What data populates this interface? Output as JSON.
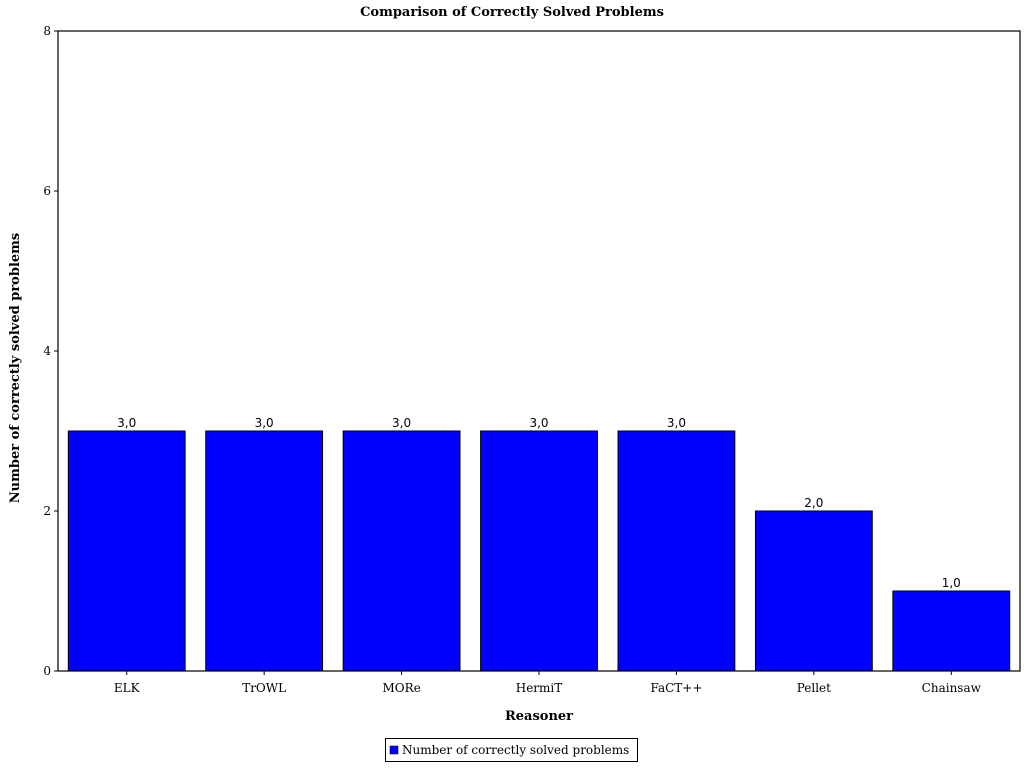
{
  "chart_data": {
    "type": "bar",
    "title": "Comparison of Correctly Solved Problems",
    "xlabel": "Reasoner",
    "ylabel": "Number of correctly solved problems",
    "categories": [
      "ELK",
      "TrOWL",
      "MORe",
      "HermiT",
      "FaCT++",
      "Pellet",
      "Chainsaw"
    ],
    "series": [
      {
        "name": "Number of correctly solved problems",
        "values": [
          3,
          3,
          3,
          3,
          3,
          2,
          1
        ],
        "color": "#0000ff"
      }
    ],
    "value_labels": [
      "3,0",
      "3,0",
      "3,0",
      "3,0",
      "3,0",
      "2,0",
      "1,0"
    ],
    "ylim": [
      0,
      8
    ],
    "yticks": [
      0,
      2,
      4,
      6,
      8
    ],
    "grid": false,
    "legend_position": "bottom-center"
  }
}
